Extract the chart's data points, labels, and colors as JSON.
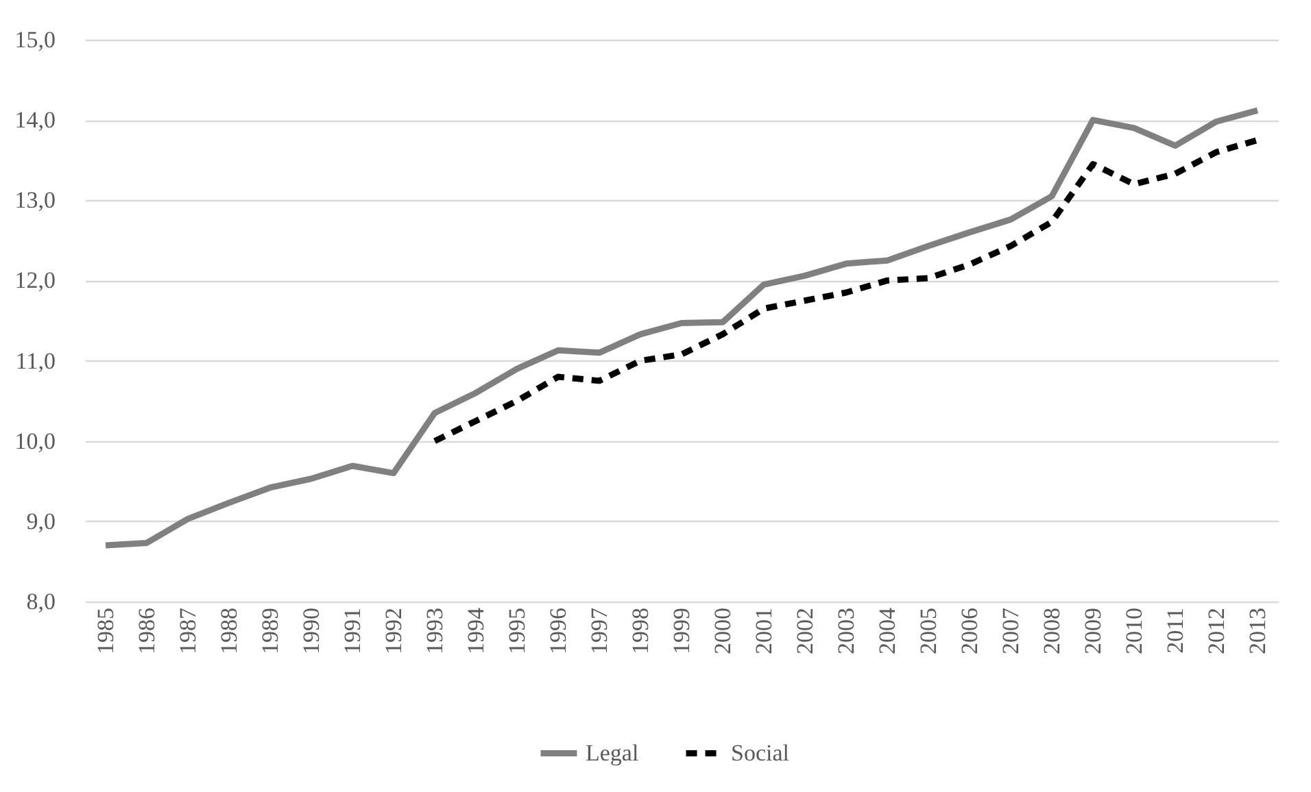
{
  "chart_data": {
    "type": "line",
    "categories": [
      "1985",
      "1986",
      "1987",
      "1988",
      "1989",
      "1990",
      "1991",
      "1992",
      "1993",
      "1994",
      "1995",
      "1996",
      "1997",
      "1998",
      "1999",
      "2000",
      "2001",
      "2002",
      "2003",
      "2004",
      "2005",
      "2006",
      "2007",
      "2008",
      "2009",
      "2010",
      "2011",
      "2012",
      "2013"
    ],
    "series": [
      {
        "name": "Legal",
        "color": "#808080",
        "line_style": "solid",
        "values": [
          8.7,
          8.73,
          9.03,
          9.23,
          9.42,
          9.53,
          9.69,
          9.6,
          10.35,
          10.6,
          10.9,
          11.13,
          11.1,
          11.33,
          11.47,
          11.48,
          11.95,
          12.06,
          12.21,
          12.25,
          12.43,
          12.6,
          12.76,
          13.05,
          14.0,
          13.9,
          13.68,
          13.98,
          14.12
        ]
      },
      {
        "name": "Social",
        "color": "#000000",
        "line_style": "dashed",
        "values": [
          null,
          null,
          null,
          null,
          null,
          null,
          null,
          null,
          10.0,
          10.25,
          10.5,
          10.8,
          10.75,
          11.0,
          11.08,
          11.33,
          11.65,
          11.75,
          11.85,
          12.0,
          12.03,
          12.2,
          12.43,
          12.73,
          13.45,
          13.2,
          13.33,
          13.6,
          13.75
        ]
      }
    ],
    "ylim": [
      8,
      15
    ],
    "yticks": [
      {
        "value": 8,
        "label": "8,0"
      },
      {
        "value": 9,
        "label": "9,0"
      },
      {
        "value": 10,
        "label": "10,0"
      },
      {
        "value": 11,
        "label": "11,0"
      },
      {
        "value": 12,
        "label": "12,0"
      },
      {
        "value": 13,
        "label": "13,0"
      },
      {
        "value": 14,
        "label": "14,0"
      },
      {
        "value": 15,
        "label": "15,0"
      }
    ],
    "grid": "y",
    "legend": "bottom",
    "marker": "none"
  }
}
